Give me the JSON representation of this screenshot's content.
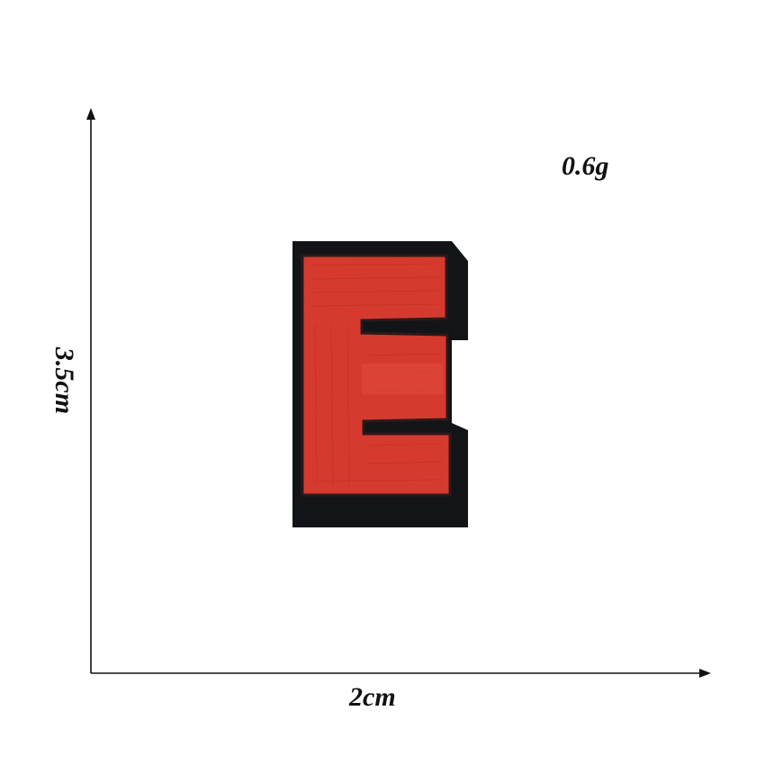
{
  "dimensions": {
    "width_label": "2cm",
    "height_label": "3.5cm",
    "weight_label": "0.6g"
  },
  "patch": {
    "letter": "E",
    "fill_color": "#d63a2f",
    "border_color": "#111111"
  },
  "colors": {
    "axis": "#111111",
    "text": "#111111",
    "background": "#ffffff"
  }
}
